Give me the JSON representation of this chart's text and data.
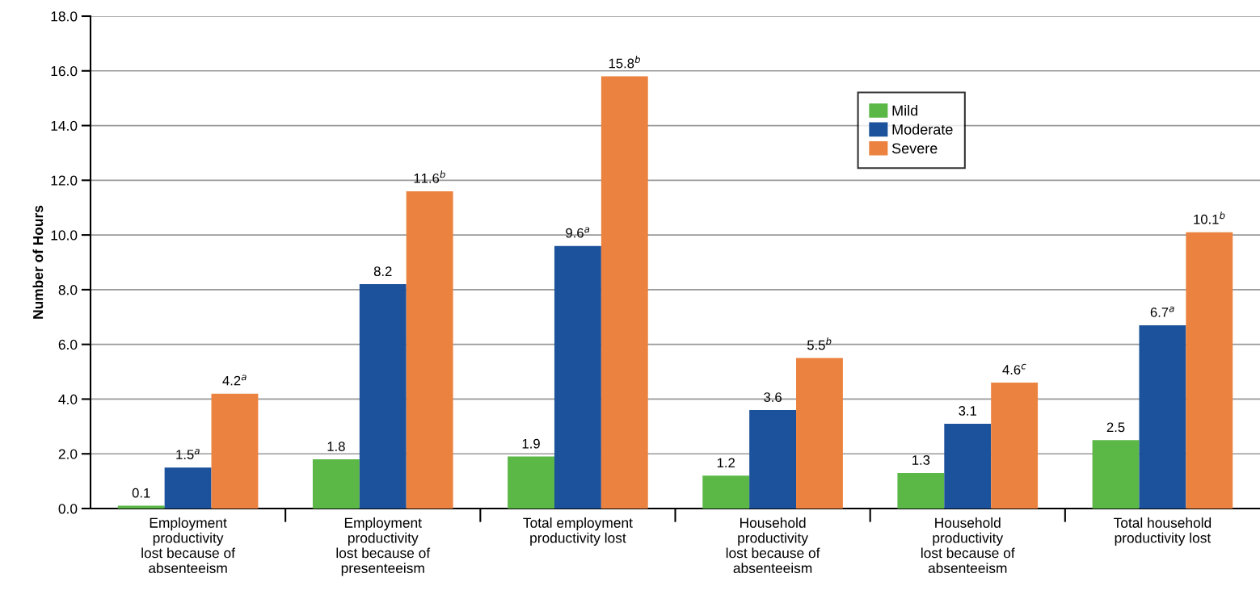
{
  "chart_data": {
    "type": "bar",
    "ylabel": "Number of Hours",
    "categories": [
      "Employment\nproductivity\nlost because of\nabsenteeism",
      "Employment\nproductivity\nlost because of\npresenteeism",
      "Total employment\nproductivity lost",
      "Household\nproductivity\nlost because of\nabsenteeism",
      "Household\nproductivity\nlost because of\nabsenteeism",
      "Total household\nproductivity lost"
    ],
    "series": [
      {
        "name": "Mild",
        "color": "#5bb847",
        "values": [
          0.1,
          1.8,
          1.9,
          1.2,
          1.3,
          2.5
        ],
        "value_labels": [
          "0.1",
          "1.8",
          "1.9",
          "1.2",
          "1.3",
          "2.5"
        ]
      },
      {
        "name": "Moderate",
        "color": "#1c519b",
        "values": [
          1.5,
          8.2,
          9.6,
          3.6,
          3.1,
          6.7
        ],
        "value_labels": [
          "1.5$^{a}$",
          "8.2",
          "9.6$^{a}$",
          "3.6",
          "3.1",
          "6.7$^{a}$"
        ]
      },
      {
        "name": "Severe",
        "color": "#ec823f",
        "values": [
          4.2,
          11.6,
          15.8,
          5.5,
          4.6,
          10.1
        ],
        "value_labels": [
          "4.2$^{a}$",
          "11.6$^{b}$",
          "15.8$^{b}$",
          "5.5$^{b}$",
          "4.6$^{c}$",
          "10.1$^{b}$"
        ]
      }
    ],
    "ylim": [
      0,
      18
    ],
    "yticks": [
      {
        "value": 0,
        "label": "0.0"
      },
      {
        "value": 2,
        "label": "2.0"
      },
      {
        "value": 4,
        "label": "4.0"
      },
      {
        "value": 6,
        "label": "6.0"
      },
      {
        "value": 8,
        "label": "8.0"
      },
      {
        "value": 10,
        "label": "10.0"
      },
      {
        "value": 12,
        "label": "12.0"
      },
      {
        "value": 14,
        "label": "14.0"
      },
      {
        "value": 16,
        "label": "16.0"
      },
      {
        "value": 18,
        "label": "18.0"
      }
    ],
    "grid": "y",
    "legend": "top right"
  }
}
